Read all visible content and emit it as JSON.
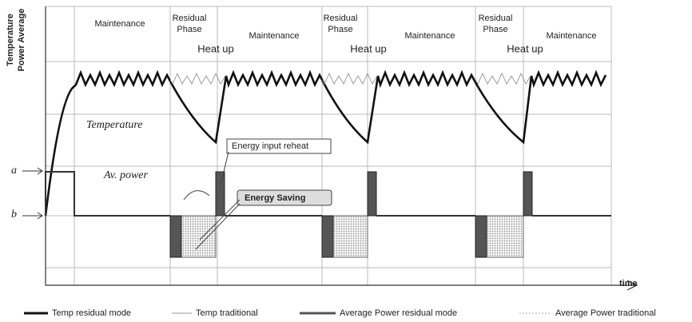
{
  "axis": {
    "y_label_lines": [
      "Temperature",
      "Power Average"
    ],
    "x_label": "time",
    "level_a": "a",
    "level_b": "b"
  },
  "phases": [
    {
      "label": "Maintenance"
    },
    {
      "label": "Residual Phase"
    },
    {
      "label": "Heat up"
    },
    {
      "label": "Maintenance"
    },
    {
      "label": "Residual Phase"
    },
    {
      "label": "Heat up"
    },
    {
      "label": "Maintenance"
    },
    {
      "label": "Residual Phase"
    },
    {
      "label": "Heat up"
    },
    {
      "label": "Maintenance"
    }
  ],
  "annotations": {
    "temperature": "Temperature",
    "av_power": "Av. power",
    "energy_input": "Energy input reheat",
    "energy_saving": "Energy Saving"
  },
  "legend": [
    "Temp residual mode",
    "Temp traditional",
    "Average Power residual mode",
    "Average Power traditional"
  ]
}
